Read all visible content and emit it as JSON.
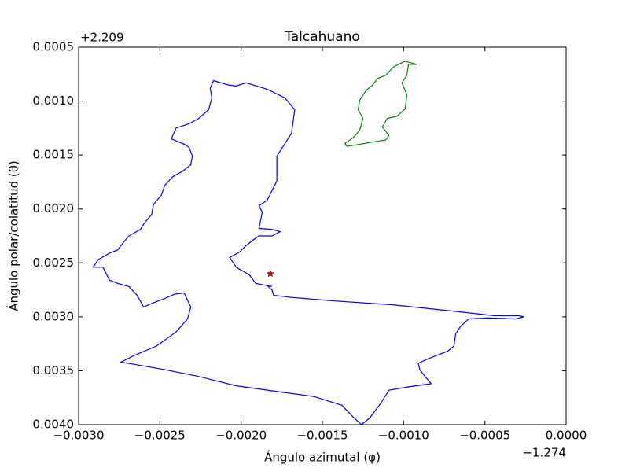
{
  "chart_data": {
    "type": "line",
    "title": "Talcahuano",
    "xlabel": "Ángulo azimutal (φ)",
    "ylabel": "Ángulo polar/colatitud (θ)",
    "x_offset": "−1.274",
    "y_offset": "+2.209",
    "xlim": [
      -0.003,
      0
    ],
    "ylim": [
      0.004,
      0.0005
    ],
    "xticks": [
      {
        "value": -0.003,
        "label": "−0.0030"
      },
      {
        "value": -0.0025,
        "label": "−0.0025"
      },
      {
        "value": -0.002,
        "label": "−0.0020"
      },
      {
        "value": -0.0015,
        "label": "−0.0015"
      },
      {
        "value": -0.001,
        "label": "−0.0010"
      },
      {
        "value": -0.0005,
        "label": "−0.0005"
      },
      {
        "value": 0,
        "label": "0.0000"
      }
    ],
    "yticks": [
      {
        "value": 0.0005,
        "label": "0.0005"
      },
      {
        "value": 0.001,
        "label": "0.0010"
      },
      {
        "value": 0.0015,
        "label": "0.0015"
      },
      {
        "value": 0.002,
        "label": "0.0020"
      },
      {
        "value": 0.0025,
        "label": "0.0025"
      },
      {
        "value": 0.003,
        "label": "0.0030"
      },
      {
        "value": 0.0035,
        "label": "0.0035"
      },
      {
        "value": 0.004,
        "label": "0.0040"
      }
    ],
    "series": [
      {
        "color": "#0000ff",
        "x": [
          -0.00184,
          -0.00181,
          -0.0018,
          -0.00169,
          -0.00145,
          -0.00106,
          -0.00068,
          -0.00044,
          -0.00029,
          -0.00026,
          -0.00031,
          -0.00048,
          -0.0006,
          -0.00065,
          -0.00068,
          -0.00069,
          -0.00073,
          -0.0008,
          -0.00085,
          -0.00091,
          -0.0009,
          -0.00087,
          -0.00083,
          -0.00097,
          -0.00109,
          -0.00114,
          -0.00121,
          -0.00126,
          -0.00131,
          -0.00138,
          -0.00155,
          -0.00179,
          -0.00203,
          -0.00227,
          -0.00247,
          -0.00266,
          -0.00274,
          -0.00266,
          -0.00252,
          -0.0024,
          -0.00233,
          -0.00231,
          -0.00235,
          -0.00241,
          -0.00247,
          -0.00254,
          -0.0026,
          -0.00264,
          -0.00269,
          -0.00276,
          -0.00281,
          -0.00285,
          -0.00291,
          -0.00288,
          -0.00281,
          -0.00276,
          -0.00273,
          -0.00269,
          -0.00262,
          -0.0026,
          -0.00255,
          -0.00254,
          -0.00249,
          -0.00247,
          -0.00242,
          -0.00236,
          -0.00231,
          -0.0023,
          -0.00232,
          -0.00235,
          -0.00243,
          -0.0024,
          -0.00232,
          -0.00226,
          -0.0022,
          -0.00218,
          -0.00219,
          -0.00217,
          -0.00208,
          -0.00203,
          -0.00197,
          -0.00184,
          -0.00173,
          -0.00167,
          -0.00169,
          -0.00178,
          -0.00178,
          -0.00184,
          -0.00189,
          -0.00187,
          -0.00189,
          -0.00181,
          -0.00176,
          -0.00181,
          -0.00189,
          -0.00191,
          -0.00197,
          -0.00201,
          -0.00207,
          -0.00203,
          -0.00195,
          -0.00191,
          -0.00181
        ],
        "values": [
          0.00271,
          0.00275,
          0.0028,
          0.00282,
          0.00285,
          0.00289,
          0.00295,
          0.00299,
          0.00299,
          0.003,
          0.00302,
          0.00301,
          0.00302,
          0.00309,
          0.00316,
          0.00327,
          0.00332,
          0.00336,
          0.00339,
          0.00343,
          0.00349,
          0.00355,
          0.00362,
          0.00365,
          0.00368,
          0.0038,
          0.00394,
          0.004,
          0.00393,
          0.00382,
          0.00374,
          0.00369,
          0.00364,
          0.00355,
          0.00349,
          0.00344,
          0.00342,
          0.00336,
          0.00327,
          0.00314,
          0.00302,
          0.00291,
          0.00278,
          0.00279,
          0.00283,
          0.00287,
          0.00291,
          0.0028,
          0.00272,
          0.00269,
          0.00266,
          0.00254,
          0.00254,
          0.00247,
          0.00241,
          0.00238,
          0.00232,
          0.00225,
          0.00219,
          0.00214,
          0.00205,
          0.00196,
          0.00187,
          0.00178,
          0.0017,
          0.00165,
          0.00159,
          0.00151,
          0.00143,
          0.0014,
          0.00135,
          0.00125,
          0.00121,
          0.00116,
          0.00108,
          0.00097,
          0.00088,
          0.00081,
          0.00085,
          0.00086,
          0.00083,
          0.00089,
          0.00097,
          0.00108,
          0.0013,
          0.00151,
          0.00174,
          0.00192,
          0.00197,
          0.00203,
          0.00218,
          0.00219,
          0.00221,
          0.00225,
          0.00225,
          0.00227,
          0.00234,
          0.0024,
          0.00245,
          0.00254,
          0.00261,
          0.00269,
          0.00272
        ]
      },
      {
        "color": "#008000",
        "x": [
          -0.00135,
          -0.00136,
          -0.00131,
          -0.00127,
          -0.00125,
          -0.00128,
          -0.00127,
          -0.00123,
          -0.00119,
          -0.00116,
          -0.00111,
          -0.00106,
          -0.00099,
          -0.00092,
          -0.00097,
          -0.00098,
          -0.00101,
          -0.00098,
          -0.00099,
          -0.00104,
          -0.0011,
          -0.00113,
          -0.00109,
          -0.00111,
          -0.00119,
          -0.00127,
          -0.00135
        ],
        "values": [
          0.00142,
          0.00139,
          0.00134,
          0.00127,
          0.00116,
          0.00108,
          0.00099,
          0.0009,
          0.00085,
          0.00079,
          0.00076,
          0.00068,
          0.00063,
          0.00066,
          0.00066,
          0.00076,
          0.00083,
          0.00094,
          0.00107,
          0.00114,
          0.00116,
          0.00124,
          0.00132,
          0.00136,
          0.00138,
          0.0014,
          0.00142
        ]
      }
    ],
    "marker": {
      "x": -0.00182,
      "y": 0.0026,
      "color": "#ff0000"
    }
  }
}
